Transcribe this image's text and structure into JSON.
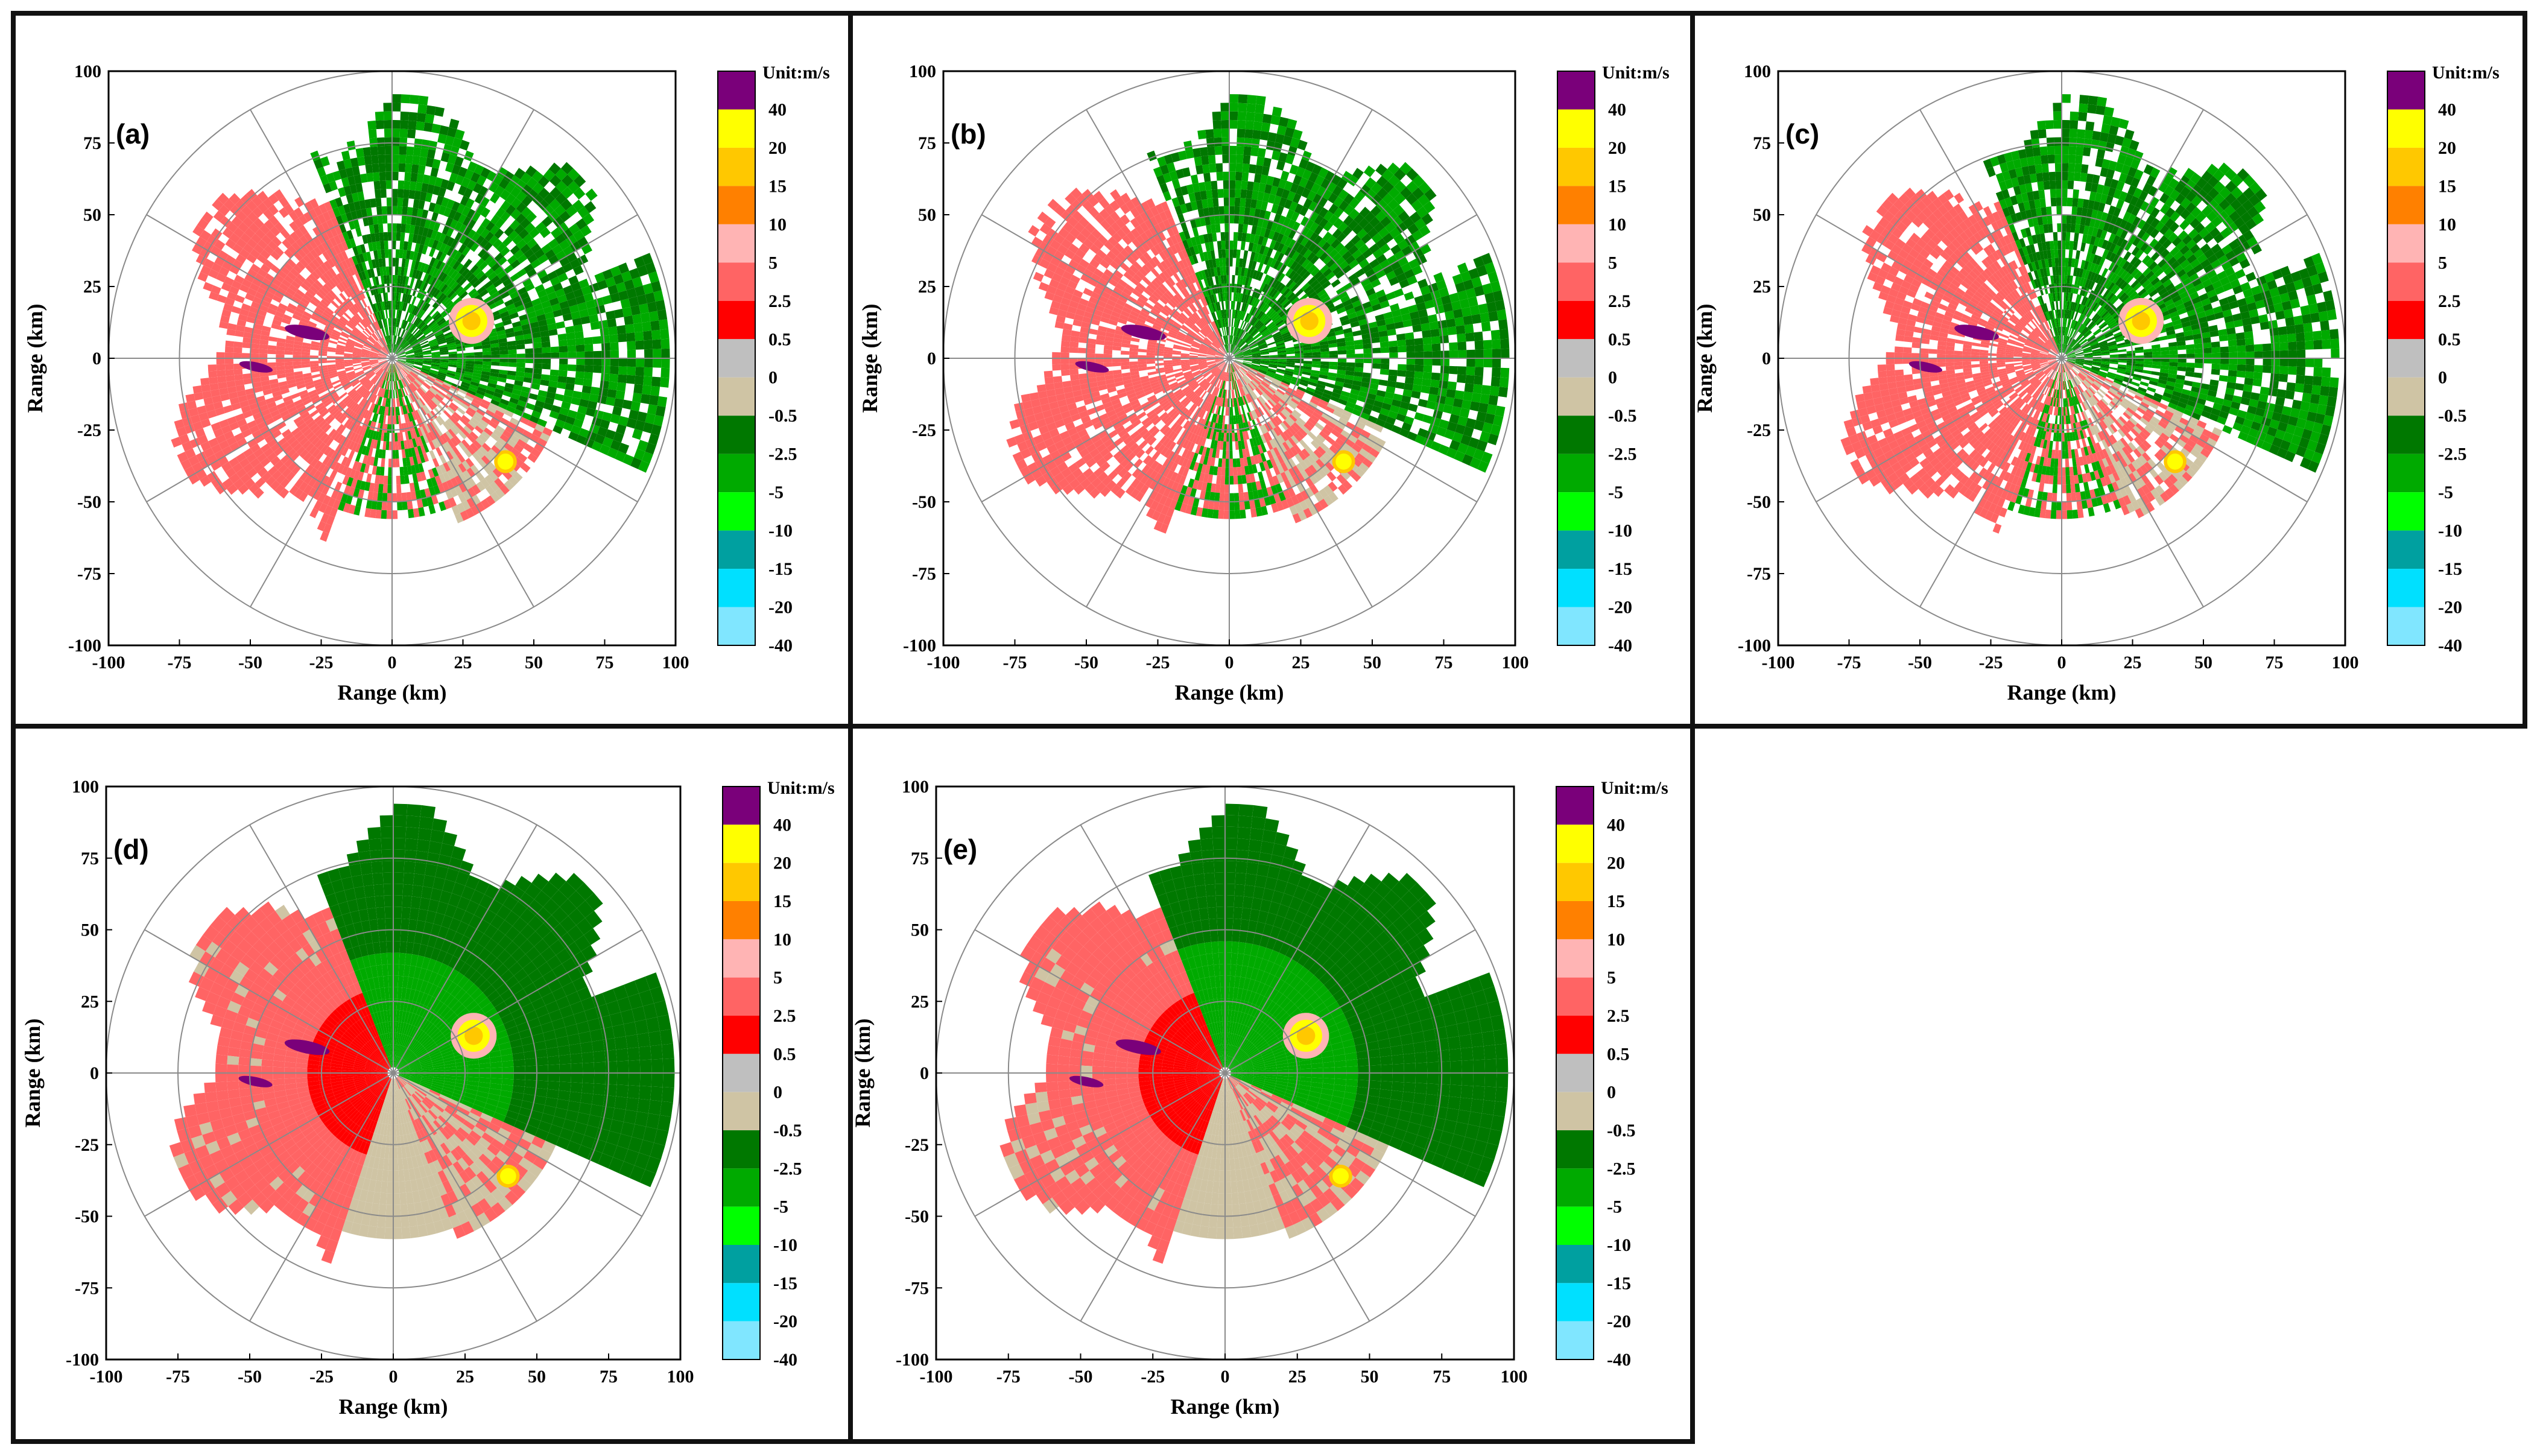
{
  "figure_title": "",
  "chart_data": [
    {
      "type": "heatmap",
      "panel_label": "(a)",
      "title": "",
      "xlabel": "Range (km)",
      "ylabel": "Range (km)",
      "xlim": [
        -100,
        100
      ],
      "ylim": [
        -100,
        100
      ],
      "x_ticks": [
        "-100",
        "-75",
        "-50",
        "-25",
        "0",
        "25",
        "50",
        "75",
        "100"
      ],
      "y_ticks": [
        "100",
        "75",
        "50",
        "25",
        "0",
        "-25",
        "-50",
        "-75",
        "-100"
      ],
      "range_rings_km": [
        25,
        50,
        75,
        100
      ],
      "radial_spoke_step_deg": 30,
      "field_style": "speckled",
      "colorbar": {
        "unit_label": "Unit:m/s",
        "tick_labels": [
          "40",
          "20",
          "15",
          "10",
          "5",
          "2.5",
          "0.5",
          "0",
          "-0.5",
          "-2.5",
          "-5",
          "-10",
          "-15",
          "-20",
          "-40"
        ],
        "colors": [
          "#7a007a",
          "#ffff00",
          "#ffc800",
          "#ff8000",
          "#ffb4b4",
          "#ff6464",
          "#ff0000",
          "#bfbfbf",
          "#cfc4a4",
          "#007800",
          "#00aa00",
          "#00ff00",
          "#00a0a0",
          "#00e0ff",
          "#80e6ff"
        ]
      }
    },
    {
      "type": "heatmap",
      "panel_label": "(b)",
      "title": "",
      "xlabel": "Range (km)",
      "ylabel": "Range (km)",
      "xlim": [
        -100,
        100
      ],
      "ylim": [
        -100,
        100
      ],
      "x_ticks": [
        "-100",
        "-75",
        "-50",
        "-25",
        "0",
        "25",
        "50",
        "75",
        "100"
      ],
      "y_ticks": [
        "100",
        "75",
        "50",
        "25",
        "0",
        "-25",
        "-50",
        "-75",
        "-100"
      ],
      "range_rings_km": [
        25,
        50,
        75,
        100
      ],
      "radial_spoke_step_deg": 30,
      "field_style": "speckled",
      "colorbar": {
        "unit_label": "Unit:m/s",
        "tick_labels": [
          "40",
          "20",
          "15",
          "10",
          "5",
          "2.5",
          "0.5",
          "0",
          "-0.5",
          "-2.5",
          "-5",
          "-10",
          "-15",
          "-20",
          "-40"
        ],
        "colors": [
          "#7a007a",
          "#ffff00",
          "#ffc800",
          "#ff8000",
          "#ffb4b4",
          "#ff6464",
          "#ff0000",
          "#bfbfbf",
          "#cfc4a4",
          "#007800",
          "#00aa00",
          "#00ff00",
          "#00a0a0",
          "#00e0ff",
          "#80e6ff"
        ]
      }
    },
    {
      "type": "heatmap",
      "panel_label": "(c)",
      "title": "",
      "xlabel": "Range (km)",
      "ylabel": "Range (km)",
      "xlim": [
        -100,
        100
      ],
      "ylim": [
        -100,
        100
      ],
      "x_ticks": [
        "-100",
        "-75",
        "-50",
        "-25",
        "0",
        "25",
        "50",
        "75",
        "100"
      ],
      "y_ticks": [
        "100",
        "75",
        "50",
        "25",
        "0",
        "-25",
        "-50",
        "-75",
        "-100"
      ],
      "range_rings_km": [
        25,
        50,
        75,
        100
      ],
      "radial_spoke_step_deg": 30,
      "field_style": "speckled-dense",
      "colorbar": {
        "unit_label": "Unit:m/s",
        "tick_labels": [
          "40",
          "20",
          "15",
          "10",
          "5",
          "2.5",
          "0.5",
          "0",
          "-0.5",
          "-2.5",
          "-5",
          "-10",
          "-15",
          "-20",
          "-40"
        ],
        "colors": [
          "#7a007a",
          "#ffff00",
          "#ffc800",
          "#ff8000",
          "#ffb4b4",
          "#ff6464",
          "#ff0000",
          "#bfbfbf",
          "#cfc4a4",
          "#007800",
          "#00aa00",
          "#00ff00",
          "#00a0a0",
          "#00e0ff",
          "#80e6ff"
        ]
      }
    },
    {
      "type": "heatmap",
      "panel_label": "(d)",
      "title": "",
      "xlabel": "Range (km)",
      "ylabel": "Range (km)",
      "xlim": [
        -100,
        100
      ],
      "ylim": [
        -100,
        100
      ],
      "x_ticks": [
        "-100",
        "-75",
        "-50",
        "-25",
        "0",
        "25",
        "50",
        "75",
        "100"
      ],
      "y_ticks": [
        "100",
        "75",
        "50",
        "25",
        "0",
        "-25",
        "-50",
        "-75",
        "-100"
      ],
      "range_rings_km": [
        25,
        50,
        75,
        100
      ],
      "radial_spoke_step_deg": 30,
      "field_style": "smooth",
      "colorbar": {
        "unit_label": "Unit:m/s",
        "tick_labels": [
          "40",
          "20",
          "15",
          "10",
          "5",
          "2.5",
          "0.5",
          "0",
          "-0.5",
          "-2.5",
          "-5",
          "-10",
          "-15",
          "-20",
          "-40"
        ],
        "colors": [
          "#7a007a",
          "#ffff00",
          "#ffc800",
          "#ff8000",
          "#ffb4b4",
          "#ff6464",
          "#ff0000",
          "#bfbfbf",
          "#cfc4a4",
          "#007800",
          "#00aa00",
          "#00ff00",
          "#00a0a0",
          "#00e0ff",
          "#80e6ff"
        ]
      }
    },
    {
      "type": "heatmap",
      "panel_label": "(e)",
      "title": "",
      "xlabel": "Range (km)",
      "ylabel": "Range (km)",
      "xlim": [
        -100,
        100
      ],
      "ylim": [
        -100,
        100
      ],
      "x_ticks": [
        "-100",
        "-75",
        "-50",
        "-25",
        "0",
        "25",
        "50",
        "75",
        "100"
      ],
      "y_ticks": [
        "100",
        "75",
        "50",
        "25",
        "0",
        "-25",
        "-50",
        "-75",
        "-100"
      ],
      "range_rings_km": [
        25,
        50,
        75,
        100
      ],
      "radial_spoke_step_deg": 30,
      "field_style": "smooth-filled",
      "colorbar": {
        "unit_label": "Unit:m/s",
        "tick_labels": [
          "40",
          "20",
          "15",
          "10",
          "5",
          "2.5",
          "0.5",
          "0",
          "-0.5",
          "-2.5",
          "-5",
          "-10",
          "-15",
          "-20",
          "-40"
        ],
        "colors": [
          "#7a007a",
          "#ffff00",
          "#ffc800",
          "#ff8000",
          "#ffb4b4",
          "#ff6464",
          "#ff0000",
          "#bfbfbf",
          "#cfc4a4",
          "#007800",
          "#00aa00",
          "#00ff00",
          "#00a0a0",
          "#00e0ff",
          "#80e6ff"
        ]
      }
    }
  ]
}
